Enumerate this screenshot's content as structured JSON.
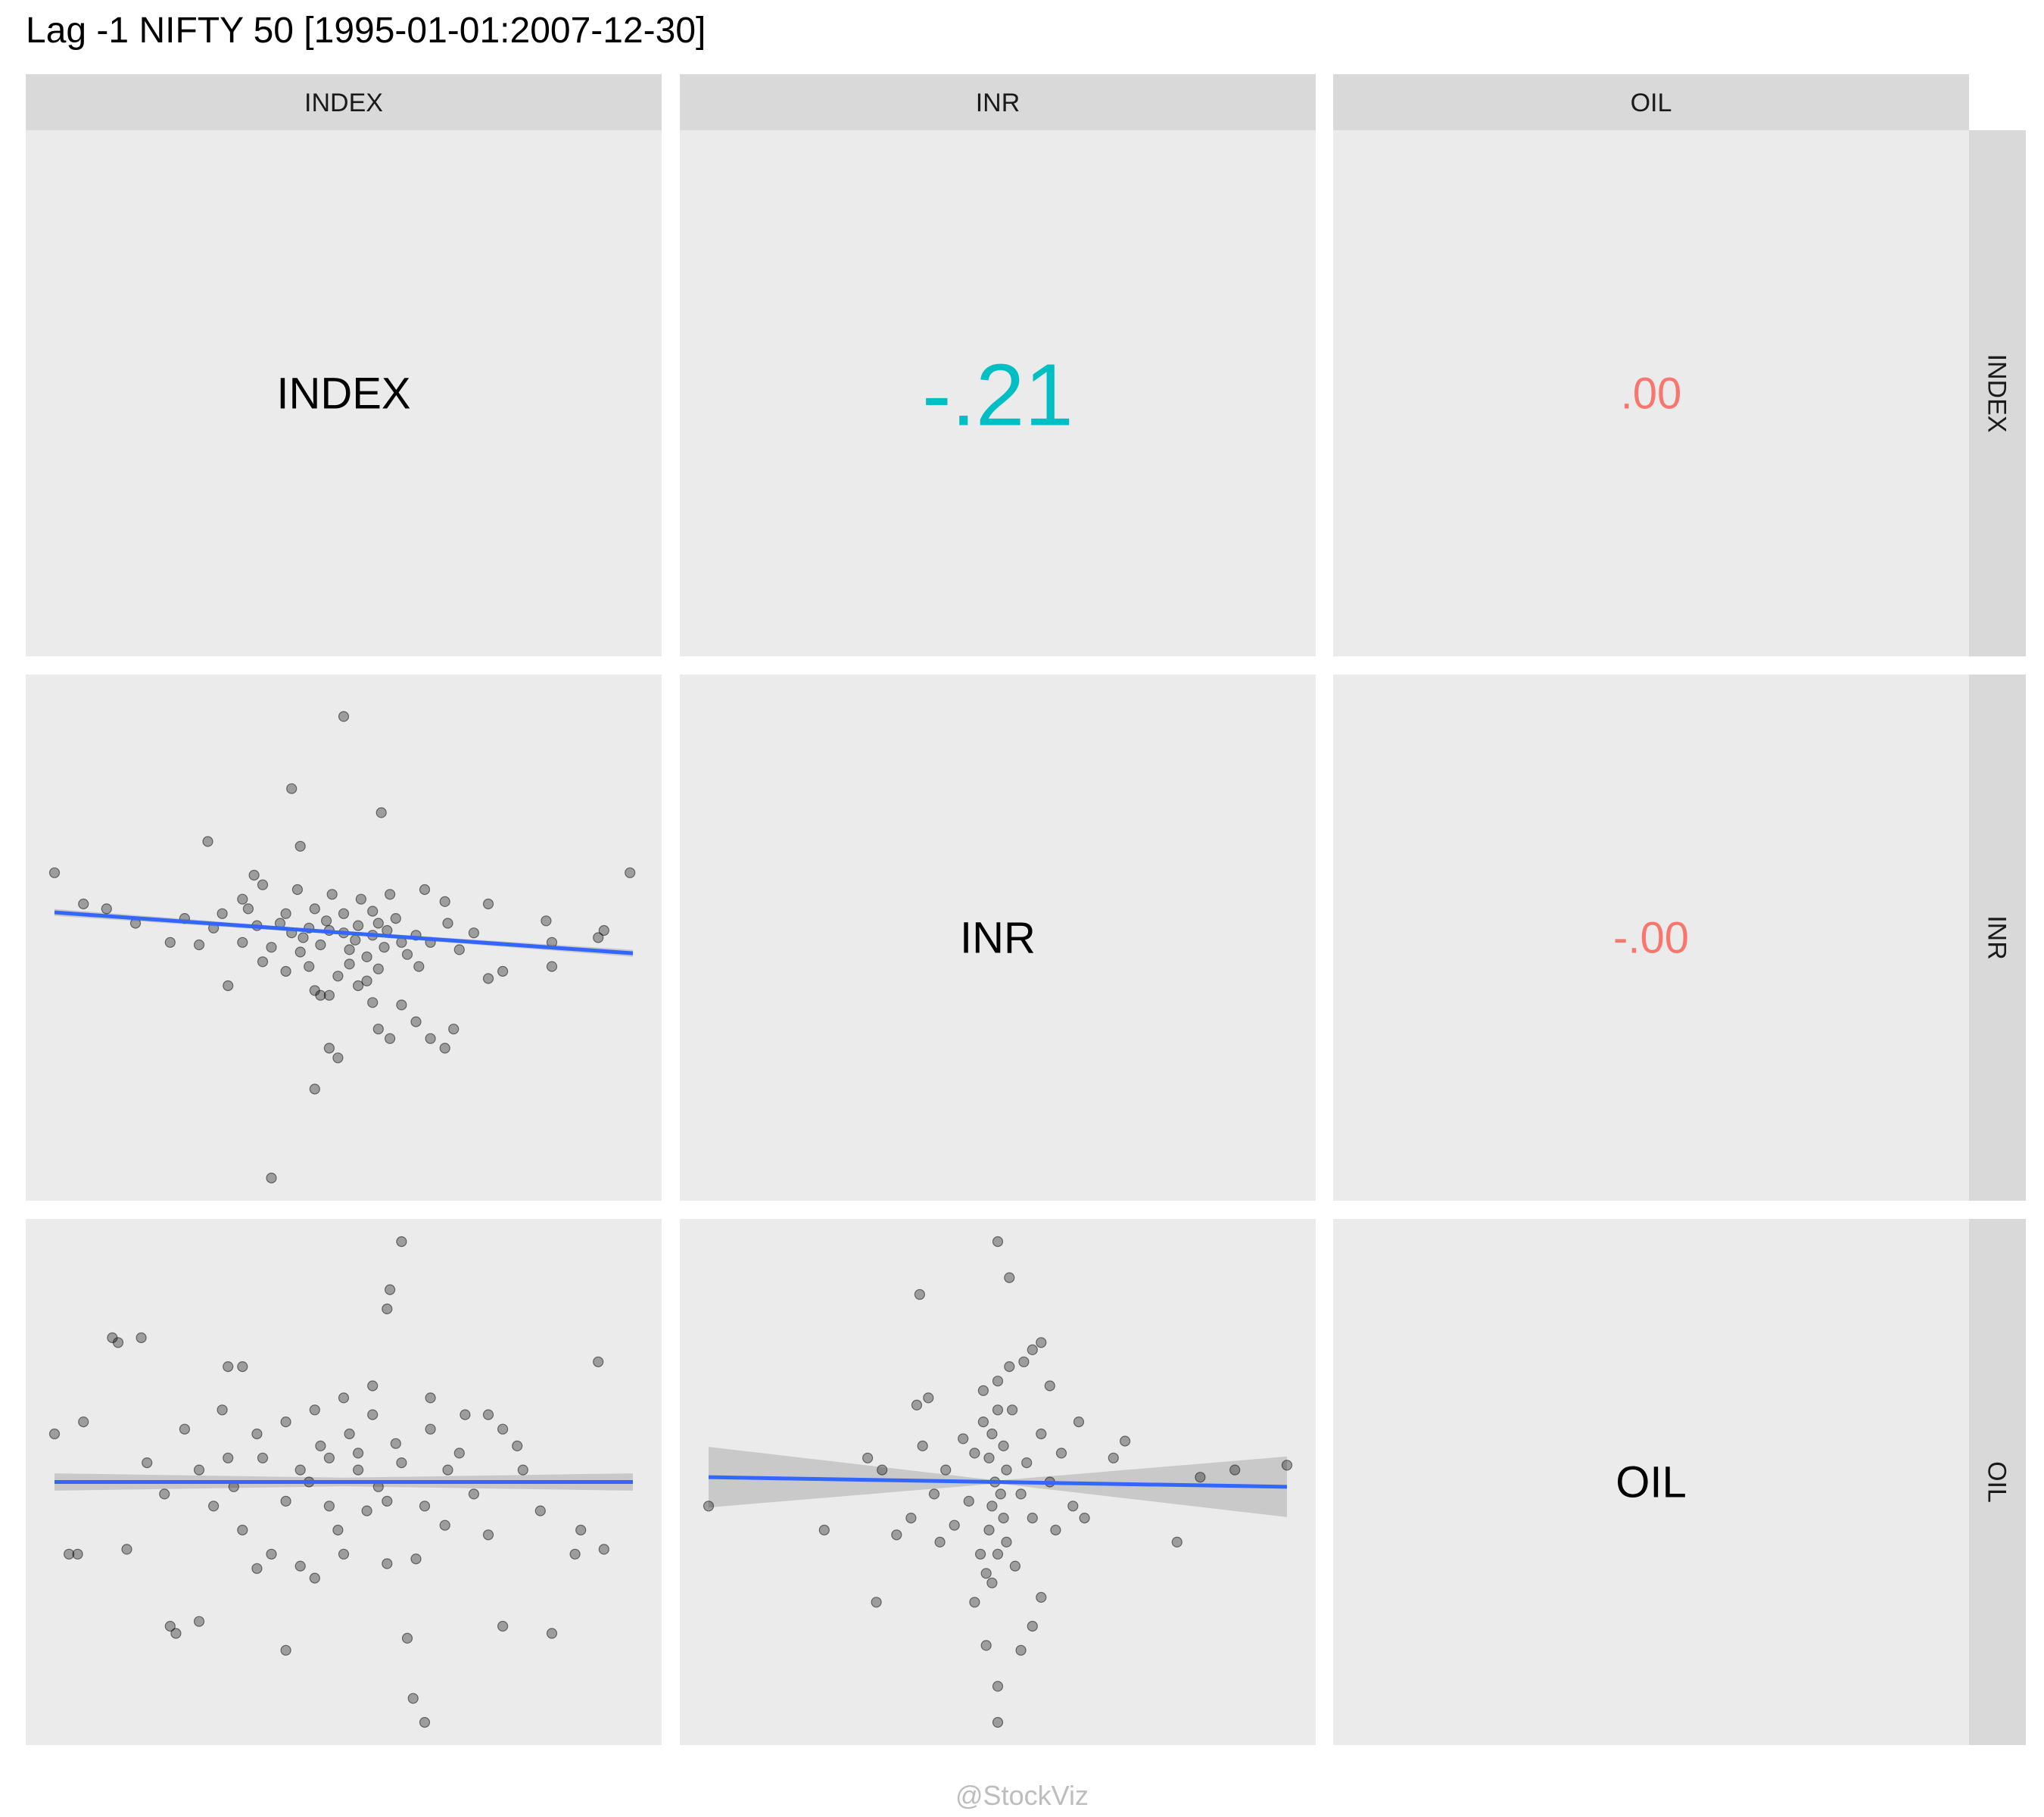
{
  "title": "Lag -1 NIFTY 50 [1995-01-01:2007-12-30]",
  "watermark": "@StockViz",
  "variables": [
    "INDEX",
    "INR",
    "OIL"
  ],
  "colors": {
    "panel_bg": "#EBEBEB",
    "strip_bg": "#D9D9D9",
    "points": "#000000",
    "fit_line": "#3366FF",
    "ci_band": "#BEBEBE",
    "corr_strong": "#00BFC4",
    "corr_weak": "#F8766D",
    "diag_text": "#000000",
    "watermark": "#BDBDBD"
  },
  "chart_data": {
    "type": "scatter",
    "layout": "scatterplot-matrix",
    "title": "Lag -1 NIFTY 50 [1995-01-01:2007-12-30]",
    "column_strips": [
      "INDEX",
      "INR",
      "OIL"
    ],
    "row_strips": [
      "INDEX",
      "INR",
      "OIL"
    ],
    "diagonal_labels": [
      "INDEX",
      "INR",
      "OIL"
    ],
    "axis_ranges": {
      "INDEX": [
        -1,
        1
      ],
      "INR": [
        -1,
        1
      ],
      "OIL": [
        -1,
        1
      ]
    },
    "grid": false,
    "legend": "none",
    "correlations": [
      {
        "row": "INDEX",
        "col": "INR",
        "label": "-.21",
        "value": -0.21,
        "color": "#00BFC4",
        "emphasis": "large"
      },
      {
        "row": "INDEX",
        "col": "OIL",
        "label": ".00",
        "value": 0.0,
        "color": "#F8766D",
        "emphasis": "small"
      },
      {
        "row": "INR",
        "col": "OIL",
        "label": "-.00",
        "value": -0.0,
        "color": "#F8766D",
        "emphasis": "small"
      }
    ],
    "scatter_panels": [
      {
        "row": "INR",
        "col": "INDEX",
        "x": "INDEX",
        "y": "INR",
        "fit": {
          "intercept": 0.02,
          "slope": -0.085,
          "se": 0.012
        },
        "points": [
          [
            0.0,
            0.92
          ],
          [
            -0.18,
            0.62
          ],
          [
            0.13,
            0.52
          ],
          [
            -0.15,
            0.38
          ],
          [
            -0.47,
            0.4
          ],
          [
            -0.31,
            0.26
          ],
          [
            -1.0,
            0.27
          ],
          [
            0.99,
            0.27
          ],
          [
            -0.9,
            0.14
          ],
          [
            -0.82,
            0.12
          ],
          [
            0.5,
            0.14
          ],
          [
            0.7,
            0.07
          ],
          [
            -0.72,
            0.06
          ],
          [
            0.9,
            0.03
          ],
          [
            -0.6,
            -0.02
          ],
          [
            0.72,
            -0.02
          ],
          [
            0.88,
            0.0
          ],
          [
            -0.42,
            0.1
          ],
          [
            -0.35,
            0.16
          ],
          [
            -0.28,
            0.22
          ],
          [
            0.28,
            0.2
          ],
          [
            0.35,
            0.15
          ],
          [
            -0.4,
            -0.2
          ],
          [
            -0.1,
            -0.22
          ],
          [
            -0.08,
            -0.24
          ],
          [
            0.55,
            -0.14
          ],
          [
            0.5,
            -0.17
          ],
          [
            0.72,
            -0.12
          ],
          [
            -0.05,
            -0.46
          ],
          [
            -0.02,
            -0.5
          ],
          [
            0.12,
            -0.38
          ],
          [
            0.16,
            -0.42
          ],
          [
            0.25,
            -0.35
          ],
          [
            0.3,
            -0.42
          ],
          [
            0.38,
            -0.38
          ],
          [
            0.35,
            -0.46
          ],
          [
            -0.1,
            -0.63
          ],
          [
            -0.25,
            -1.0
          ],
          [
            -0.05,
            -0.24
          ],
          [
            0.2,
            -0.28
          ],
          [
            0.1,
            -0.27
          ],
          [
            0.05,
            -0.2
          ],
          [
            -0.3,
            0.05
          ],
          [
            -0.22,
            0.06
          ],
          [
            -0.18,
            0.02
          ],
          [
            -0.12,
            0.04
          ],
          [
            -0.05,
            0.03
          ],
          [
            0.0,
            0.02
          ],
          [
            0.05,
            0.05
          ],
          [
            0.1,
            0.01
          ],
          [
            0.15,
            0.03
          ],
          [
            0.2,
            -0.02
          ],
          [
            0.25,
            0.01
          ],
          [
            -0.25,
            -0.04
          ],
          [
            -0.15,
            -0.06
          ],
          [
            -0.08,
            -0.03
          ],
          [
            0.02,
            -0.05
          ],
          [
            0.08,
            -0.08
          ],
          [
            0.14,
            -0.04
          ],
          [
            0.22,
            -0.07
          ],
          [
            0.3,
            -0.02
          ],
          [
            -0.35,
            -0.02
          ],
          [
            -0.2,
            0.1
          ],
          [
            -0.1,
            0.12
          ],
          [
            0.0,
            0.1
          ],
          [
            0.1,
            0.11
          ],
          [
            0.18,
            0.08
          ],
          [
            -0.28,
            -0.1
          ],
          [
            -0.12,
            -0.12
          ],
          [
            0.02,
            -0.11
          ],
          [
            0.12,
            -0.13
          ],
          [
            0.4,
            -0.05
          ],
          [
            0.45,
            0.02
          ],
          [
            -0.45,
            0.04
          ],
          [
            -0.5,
            -0.03
          ],
          [
            -0.55,
            0.08
          ],
          [
            -0.04,
            0.18
          ],
          [
            0.06,
            0.16
          ],
          [
            -0.16,
            0.2
          ],
          [
            0.16,
            0.18
          ],
          [
            -0.02,
            -0.16
          ],
          [
            0.08,
            -0.18
          ],
          [
            -0.2,
            -0.14
          ],
          [
            0.26,
            -0.12
          ],
          [
            -0.33,
            0.12
          ],
          [
            0.36,
            0.06
          ],
          [
            -0.06,
            0.07
          ],
          [
            0.04,
            -0.01
          ],
          [
            -0.14,
            0.0
          ],
          [
            0.12,
            0.06
          ]
        ]
      },
      {
        "row": "OIL",
        "col": "INDEX",
        "x": "INDEX",
        "y": "OIL",
        "fit": {
          "intercept": 0.0,
          "slope": 0.0,
          "se": 0.03
        },
        "points": [
          [
            0.2,
            1.0
          ],
          [
            0.16,
            0.8
          ],
          [
            0.15,
            0.72
          ],
          [
            -0.8,
            0.6
          ],
          [
            -0.78,
            0.58
          ],
          [
            -0.7,
            0.6
          ],
          [
            -0.4,
            0.48
          ],
          [
            -0.35,
            0.48
          ],
          [
            0.88,
            0.5
          ],
          [
            -1.0,
            0.2
          ],
          [
            -0.9,
            0.25
          ],
          [
            0.5,
            0.28
          ],
          [
            0.55,
            0.22
          ],
          [
            0.6,
            0.15
          ],
          [
            -0.95,
            -0.3
          ],
          [
            -0.92,
            -0.3
          ],
          [
            -0.75,
            -0.28
          ],
          [
            0.8,
            -0.3
          ],
          [
            0.9,
            -0.28
          ],
          [
            0.82,
            -0.2
          ],
          [
            -0.6,
            -0.6
          ],
          [
            -0.58,
            -0.63
          ],
          [
            -0.5,
            -0.58
          ],
          [
            -0.2,
            -0.7
          ],
          [
            0.22,
            -0.65
          ],
          [
            0.55,
            -0.6
          ],
          [
            0.72,
            -0.63
          ],
          [
            0.24,
            -0.9
          ],
          [
            0.28,
            -1.0
          ],
          [
            -0.1,
            0.3
          ],
          [
            0.0,
            0.35
          ],
          [
            0.1,
            0.28
          ],
          [
            -0.2,
            0.25
          ],
          [
            0.3,
            0.22
          ],
          [
            -0.3,
            0.2
          ],
          [
            0.4,
            0.12
          ],
          [
            -0.4,
            0.1
          ],
          [
            -0.5,
            0.05
          ],
          [
            0.45,
            -0.05
          ],
          [
            -0.45,
            -0.1
          ],
          [
            0.35,
            -0.18
          ],
          [
            -0.35,
            -0.2
          ],
          [
            -0.25,
            -0.3
          ],
          [
            0.25,
            -0.32
          ],
          [
            -0.15,
            -0.35
          ],
          [
            0.15,
            -0.34
          ],
          [
            0.0,
            -0.3
          ],
          [
            -0.05,
            0.1
          ],
          [
            0.05,
            0.05
          ],
          [
            -0.12,
            0.0
          ],
          [
            0.12,
            -0.02
          ],
          [
            0.2,
            0.08
          ],
          [
            -0.2,
            -0.08
          ],
          [
            0.08,
            -0.12
          ],
          [
            -0.08,
            0.15
          ],
          [
            0.18,
            0.16
          ],
          [
            -0.28,
            0.1
          ],
          [
            0.28,
            -0.1
          ],
          [
            0.36,
            0.05
          ],
          [
            -0.38,
            -0.02
          ],
          [
            0.02,
            0.2
          ],
          [
            -0.02,
            -0.2
          ],
          [
            0.1,
            0.4
          ],
          [
            -0.1,
            -0.4
          ],
          [
            0.3,
            0.35
          ],
          [
            -0.3,
            -0.36
          ],
          [
            0.42,
            0.28
          ],
          [
            -0.42,
            0.3
          ],
          [
            0.5,
            -0.22
          ],
          [
            -0.55,
            0.22
          ],
          [
            0.62,
            0.05
          ],
          [
            -0.62,
            -0.05
          ],
          [
            0.68,
            -0.12
          ],
          [
            -0.68,
            0.08
          ],
          [
            -0.15,
            0.05
          ],
          [
            0.15,
            -0.08
          ],
          [
            -0.05,
            -0.1
          ],
          [
            0.05,
            0.12
          ]
        ]
      },
      {
        "row": "OIL",
        "col": "INR",
        "x": "INR",
        "y": "OIL",
        "fit": {
          "intercept": 0.0,
          "slope": -0.02,
          "se_at_edge": 0.12
        },
        "points": [
          [
            0.0,
            1.0
          ],
          [
            0.04,
            0.85
          ],
          [
            -0.27,
            0.78
          ],
          [
            0.12,
            0.55
          ],
          [
            0.15,
            0.58
          ],
          [
            0.09,
            0.5
          ],
          [
            0.18,
            0.4
          ],
          [
            -0.05,
            0.38
          ],
          [
            -0.24,
            0.35
          ],
          [
            -0.28,
            0.32
          ],
          [
            -0.45,
            0.1
          ],
          [
            -0.4,
            0.05
          ],
          [
            0.44,
            0.17
          ],
          [
            0.4,
            0.1
          ],
          [
            0.7,
            0.02
          ],
          [
            0.82,
            0.05
          ],
          [
            1.0,
            0.07
          ],
          [
            -1.0,
            -0.1
          ],
          [
            -0.6,
            -0.2
          ],
          [
            -0.35,
            -0.22
          ],
          [
            -0.3,
            -0.15
          ],
          [
            0.2,
            -0.2
          ],
          [
            0.3,
            -0.15
          ],
          [
            0.62,
            -0.25
          ],
          [
            -0.42,
            -0.5
          ],
          [
            -0.08,
            -0.5
          ],
          [
            0.15,
            -0.48
          ],
          [
            0.12,
            -0.6
          ],
          [
            -0.04,
            -0.68
          ],
          [
            0.0,
            -0.85
          ],
          [
            0.0,
            -1.0
          ],
          [
            0.08,
            -0.7
          ],
          [
            -0.02,
            0.2
          ],
          [
            0.02,
            0.15
          ],
          [
            -0.03,
            0.1
          ],
          [
            0.03,
            0.05
          ],
          [
            -0.01,
            0.0
          ],
          [
            0.01,
            -0.05
          ],
          [
            -0.02,
            -0.1
          ],
          [
            0.02,
            -0.15
          ],
          [
            -0.03,
            -0.2
          ],
          [
            0.03,
            -0.25
          ],
          [
            0.0,
            -0.3
          ],
          [
            -0.05,
            0.25
          ],
          [
            0.05,
            0.3
          ],
          [
            -0.06,
            -0.3
          ],
          [
            0.06,
            -0.35
          ],
          [
            0.0,
            0.3
          ],
          [
            -0.08,
            0.12
          ],
          [
            0.08,
            -0.05
          ],
          [
            -0.1,
            -0.08
          ],
          [
            0.1,
            0.08
          ],
          [
            -0.12,
            0.18
          ],
          [
            0.12,
            -0.15
          ],
          [
            -0.15,
            -0.18
          ],
          [
            0.15,
            0.2
          ],
          [
            -0.18,
            0.05
          ],
          [
            0.18,
            0.0
          ],
          [
            0.22,
            0.12
          ],
          [
            -0.22,
            -0.05
          ],
          [
            0.0,
            0.42
          ],
          [
            -0.02,
            -0.42
          ],
          [
            0.04,
            0.48
          ],
          [
            -0.04,
            -0.38
          ],
          [
            0.26,
            -0.1
          ],
          [
            -0.26,
            0.15
          ],
          [
            0.28,
            0.25
          ],
          [
            -0.2,
            -0.25
          ]
        ]
      }
    ]
  }
}
